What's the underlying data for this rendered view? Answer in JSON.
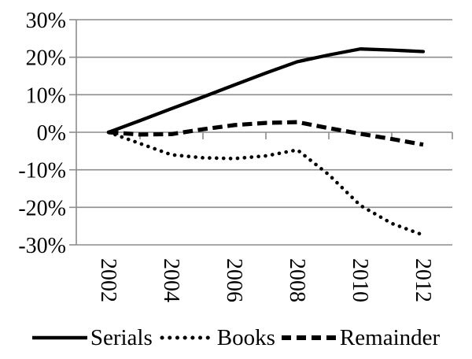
{
  "chart_data": {
    "type": "line",
    "title": "",
    "xlabel": "",
    "ylabel": "",
    "x": [
      2002,
      2003,
      2004,
      2005,
      2006,
      2007,
      2008,
      2009,
      2010,
      2011,
      2012
    ],
    "x_tick_labels": [
      "2002",
      "2004",
      "2006",
      "2008",
      "2010",
      "2012"
    ],
    "x_tick_years": [
      2002,
      2004,
      2006,
      2008,
      2010,
      2012
    ],
    "y_ticks": [
      {
        "value": 30,
        "label": "30%"
      },
      {
        "value": 20,
        "label": "20%"
      },
      {
        "value": 10,
        "label": "10%"
      },
      {
        "value": 0,
        "label": "0%"
      },
      {
        "value": -10,
        "label": "-10%"
      },
      {
        "value": -20,
        "label": "-20%"
      },
      {
        "value": -30,
        "label": "-30%"
      }
    ],
    "ylim": [
      -30,
      30
    ],
    "grid": true,
    "legend_position": "bottom",
    "series": [
      {
        "name": "Serials",
        "style": "solid",
        "color": "#000000",
        "values": [
          0,
          3.1,
          6.3,
          9.4,
          12.6,
          15.8,
          18.8,
          20.6,
          22.2,
          21.9,
          21.5
        ]
      },
      {
        "name": "Books",
        "style": "dotted",
        "color": "#000000",
        "values": [
          0,
          -3,
          -6,
          -6.8,
          -7,
          -6.3,
          -4.7,
          -11.3,
          -19.5,
          -24.3,
          -27.4
        ]
      },
      {
        "name": "Remainder",
        "style": "dashed",
        "color": "#000000",
        "values": [
          0,
          -0.6,
          -0.5,
          0.8,
          1.9,
          2.5,
          2.7,
          1.1,
          -0.4,
          -1.8,
          -3.3
        ]
      }
    ],
    "colors": {
      "background": "#ffffff",
      "gridline": "#8c8c8c",
      "axis": "#8c8c8c",
      "text": "#000000"
    }
  }
}
